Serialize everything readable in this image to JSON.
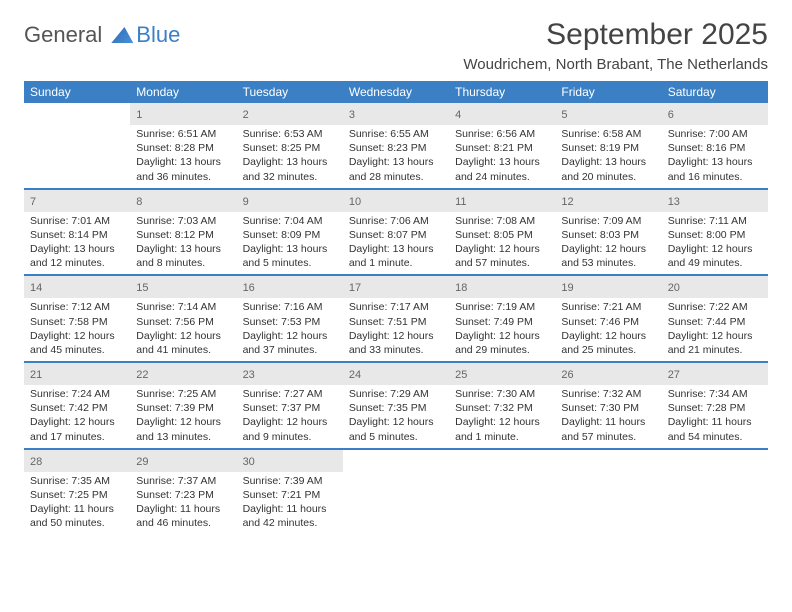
{
  "logo": {
    "text1": "General",
    "text2": "Blue"
  },
  "title": "September 2025",
  "location": "Woudrichem, North Brabant, The Netherlands",
  "colors": {
    "header_bg": "#3b7fc4",
    "header_text": "#ffffff",
    "daynum_bg": "#e8e8e8",
    "cell_border": "#3b7fc4",
    "body_text": "#333333"
  },
  "dayHeaders": [
    "Sunday",
    "Monday",
    "Tuesday",
    "Wednesday",
    "Thursday",
    "Friday",
    "Saturday"
  ],
  "weeks": [
    [
      null,
      {
        "n": "1",
        "sr": "Sunrise: 6:51 AM",
        "ss": "Sunset: 8:28 PM",
        "dl1": "Daylight: 13 hours",
        "dl2": "and 36 minutes."
      },
      {
        "n": "2",
        "sr": "Sunrise: 6:53 AM",
        "ss": "Sunset: 8:25 PM",
        "dl1": "Daylight: 13 hours",
        "dl2": "and 32 minutes."
      },
      {
        "n": "3",
        "sr": "Sunrise: 6:55 AM",
        "ss": "Sunset: 8:23 PM",
        "dl1": "Daylight: 13 hours",
        "dl2": "and 28 minutes."
      },
      {
        "n": "4",
        "sr": "Sunrise: 6:56 AM",
        "ss": "Sunset: 8:21 PM",
        "dl1": "Daylight: 13 hours",
        "dl2": "and 24 minutes."
      },
      {
        "n": "5",
        "sr": "Sunrise: 6:58 AM",
        "ss": "Sunset: 8:19 PM",
        "dl1": "Daylight: 13 hours",
        "dl2": "and 20 minutes."
      },
      {
        "n": "6",
        "sr": "Sunrise: 7:00 AM",
        "ss": "Sunset: 8:16 PM",
        "dl1": "Daylight: 13 hours",
        "dl2": "and 16 minutes."
      }
    ],
    [
      {
        "n": "7",
        "sr": "Sunrise: 7:01 AM",
        "ss": "Sunset: 8:14 PM",
        "dl1": "Daylight: 13 hours",
        "dl2": "and 12 minutes."
      },
      {
        "n": "8",
        "sr": "Sunrise: 7:03 AM",
        "ss": "Sunset: 8:12 PM",
        "dl1": "Daylight: 13 hours",
        "dl2": "and 8 minutes."
      },
      {
        "n": "9",
        "sr": "Sunrise: 7:04 AM",
        "ss": "Sunset: 8:09 PM",
        "dl1": "Daylight: 13 hours",
        "dl2": "and 5 minutes."
      },
      {
        "n": "10",
        "sr": "Sunrise: 7:06 AM",
        "ss": "Sunset: 8:07 PM",
        "dl1": "Daylight: 13 hours",
        "dl2": "and 1 minute."
      },
      {
        "n": "11",
        "sr": "Sunrise: 7:08 AM",
        "ss": "Sunset: 8:05 PM",
        "dl1": "Daylight: 12 hours",
        "dl2": "and 57 minutes."
      },
      {
        "n": "12",
        "sr": "Sunrise: 7:09 AM",
        "ss": "Sunset: 8:03 PM",
        "dl1": "Daylight: 12 hours",
        "dl2": "and 53 minutes."
      },
      {
        "n": "13",
        "sr": "Sunrise: 7:11 AM",
        "ss": "Sunset: 8:00 PM",
        "dl1": "Daylight: 12 hours",
        "dl2": "and 49 minutes."
      }
    ],
    [
      {
        "n": "14",
        "sr": "Sunrise: 7:12 AM",
        "ss": "Sunset: 7:58 PM",
        "dl1": "Daylight: 12 hours",
        "dl2": "and 45 minutes."
      },
      {
        "n": "15",
        "sr": "Sunrise: 7:14 AM",
        "ss": "Sunset: 7:56 PM",
        "dl1": "Daylight: 12 hours",
        "dl2": "and 41 minutes."
      },
      {
        "n": "16",
        "sr": "Sunrise: 7:16 AM",
        "ss": "Sunset: 7:53 PM",
        "dl1": "Daylight: 12 hours",
        "dl2": "and 37 minutes."
      },
      {
        "n": "17",
        "sr": "Sunrise: 7:17 AM",
        "ss": "Sunset: 7:51 PM",
        "dl1": "Daylight: 12 hours",
        "dl2": "and 33 minutes."
      },
      {
        "n": "18",
        "sr": "Sunrise: 7:19 AM",
        "ss": "Sunset: 7:49 PM",
        "dl1": "Daylight: 12 hours",
        "dl2": "and 29 minutes."
      },
      {
        "n": "19",
        "sr": "Sunrise: 7:21 AM",
        "ss": "Sunset: 7:46 PM",
        "dl1": "Daylight: 12 hours",
        "dl2": "and 25 minutes."
      },
      {
        "n": "20",
        "sr": "Sunrise: 7:22 AM",
        "ss": "Sunset: 7:44 PM",
        "dl1": "Daylight: 12 hours",
        "dl2": "and 21 minutes."
      }
    ],
    [
      {
        "n": "21",
        "sr": "Sunrise: 7:24 AM",
        "ss": "Sunset: 7:42 PM",
        "dl1": "Daylight: 12 hours",
        "dl2": "and 17 minutes."
      },
      {
        "n": "22",
        "sr": "Sunrise: 7:25 AM",
        "ss": "Sunset: 7:39 PM",
        "dl1": "Daylight: 12 hours",
        "dl2": "and 13 minutes."
      },
      {
        "n": "23",
        "sr": "Sunrise: 7:27 AM",
        "ss": "Sunset: 7:37 PM",
        "dl1": "Daylight: 12 hours",
        "dl2": "and 9 minutes."
      },
      {
        "n": "24",
        "sr": "Sunrise: 7:29 AM",
        "ss": "Sunset: 7:35 PM",
        "dl1": "Daylight: 12 hours",
        "dl2": "and 5 minutes."
      },
      {
        "n": "25",
        "sr": "Sunrise: 7:30 AM",
        "ss": "Sunset: 7:32 PM",
        "dl1": "Daylight: 12 hours",
        "dl2": "and 1 minute."
      },
      {
        "n": "26",
        "sr": "Sunrise: 7:32 AM",
        "ss": "Sunset: 7:30 PM",
        "dl1": "Daylight: 11 hours",
        "dl2": "and 57 minutes."
      },
      {
        "n": "27",
        "sr": "Sunrise: 7:34 AM",
        "ss": "Sunset: 7:28 PM",
        "dl1": "Daylight: 11 hours",
        "dl2": "and 54 minutes."
      }
    ],
    [
      {
        "n": "28",
        "sr": "Sunrise: 7:35 AM",
        "ss": "Sunset: 7:25 PM",
        "dl1": "Daylight: 11 hours",
        "dl2": "and 50 minutes."
      },
      {
        "n": "29",
        "sr": "Sunrise: 7:37 AM",
        "ss": "Sunset: 7:23 PM",
        "dl1": "Daylight: 11 hours",
        "dl2": "and 46 minutes."
      },
      {
        "n": "30",
        "sr": "Sunrise: 7:39 AM",
        "ss": "Sunset: 7:21 PM",
        "dl1": "Daylight: 11 hours",
        "dl2": "and 42 minutes."
      },
      null,
      null,
      null,
      null
    ]
  ]
}
